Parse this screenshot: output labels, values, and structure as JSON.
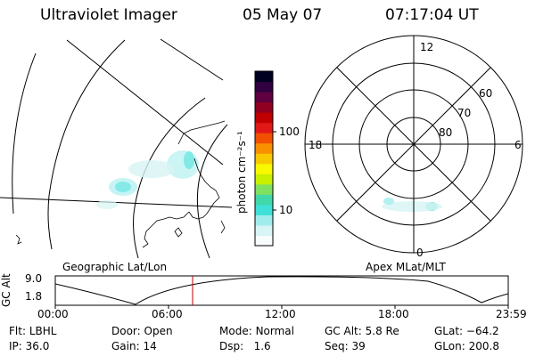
{
  "header": {
    "title": "Ultraviolet Imager",
    "date": "05 May 07",
    "time": "07:17:04 UT"
  },
  "left_panel": {
    "label": "Geographic Lat/Lon"
  },
  "right_panel": {
    "label": "Apex MLat/MLT",
    "mlt_labels": [
      "12",
      "18",
      "6",
      "0"
    ],
    "lat_labels": [
      "60",
      "70",
      "80"
    ]
  },
  "colorbar": {
    "unit": "photon cm⁻²s⁻¹",
    "ticks": [
      "100",
      "10"
    ],
    "colors": [
      "#f8fcfc",
      "#d8f4f4",
      "#a0ecec",
      "#40e0d8",
      "#40d8a8",
      "#80e060",
      "#c8f000",
      "#f8f800",
      "#f8c800",
      "#f89000",
      "#f05000",
      "#e01818",
      "#c00000",
      "#900020",
      "#600040",
      "#300040",
      "#000020"
    ]
  },
  "timeline": {
    "ylabel": "GC Alt",
    "yticks": [
      "9.0",
      "1.8"
    ],
    "xticks": [
      "00:00",
      "06:00",
      "12:00",
      "18:00",
      "23:59"
    ]
  },
  "info": {
    "row1": [
      {
        "label": "Flt:",
        "value": "LBHL"
      },
      {
        "label": "Door:",
        "value": "Open"
      },
      {
        "label": "Mode:",
        "value": "Normal"
      },
      {
        "label": "GC Alt:",
        "value": "5.8 Re"
      },
      {
        "label": "GLat:",
        "value": "−64.2"
      }
    ],
    "row2": [
      {
        "label": "IP:",
        "value": "36.0"
      },
      {
        "label": "Gain:",
        "value": "14"
      },
      {
        "label": "Dsp:",
        "value": "1.6"
      },
      {
        "label": "Seq:",
        "value": "39"
      },
      {
        "label": "GLon:",
        "value": "200.8"
      }
    ]
  }
}
